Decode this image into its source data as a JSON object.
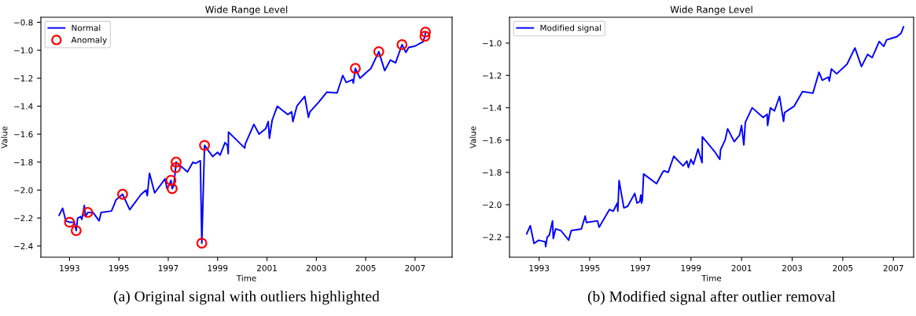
{
  "chart_data": [
    {
      "type": "line",
      "title": "Wide Range Level",
      "xlabel": "Time",
      "ylabel": "Value",
      "legend": "top left",
      "annotations": [
        "(a) Original signal with outliers highlighted"
      ],
      "xlim": [
        1991.84,
        2008.5
      ],
      "ylim": [
        -2.48,
        -0.764
      ],
      "xticks": [
        1993,
        1995,
        1997,
        1999,
        2001,
        2003,
        2005,
        2007
      ],
      "yticks": [
        {
          "value": -2.4,
          "label": "−2.4"
        },
        {
          "value": -2.2,
          "label": "−2.2"
        },
        {
          "value": -2.0,
          "label": "−2.0"
        },
        {
          "value": -1.8,
          "label": "−1.8"
        },
        {
          "value": -1.6,
          "label": "−1.6"
        },
        {
          "value": -1.4,
          "label": "−1.4"
        },
        {
          "value": -1.2,
          "label": "−1.2"
        },
        {
          "value": -1.0,
          "label": "−1.0"
        },
        {
          "value": -0.8,
          "label": "−0.8"
        }
      ],
      "series": [
        {
          "name": "Normal",
          "color": "#0000ff",
          "x": [
            1992.58,
            1992.72,
            1992.85,
            1993.0,
            1993.2,
            1993.27,
            1993.33,
            1993.45,
            1993.5,
            1993.6,
            1993.65,
            1993.74,
            1993.95,
            1994.2,
            1994.28,
            1994.7,
            1994.82,
            1994.88,
            1995.15,
            1995.44,
            1995.9,
            1996.1,
            1996.15,
            1996.24,
            1996.45,
            1996.87,
            1996.95,
            1997.05,
            1997.11,
            1997.16,
            1997.22,
            1997.3,
            1997.32,
            1997.78,
            1998.0,
            1998.1,
            1998.3,
            1998.36,
            1998.47,
            1998.8,
            1999.0,
            1999.1,
            1999.3,
            1999.4,
            1999.43,
            1999.44,
            2000.1,
            2000.12,
            2000.47,
            2000.68,
            2000.95,
            2001.05,
            2001.1,
            2001.21,
            2001.42,
            2001.84,
            2002.0,
            2002.05,
            2002.21,
            2002.53,
            2002.68,
            2002.74,
            2003.1,
            2003.42,
            2003.84,
            2004.07,
            2004.21,
            2004.47,
            2004.5,
            2004.58,
            2004.77,
            2004.89,
            2005.21,
            2005.53,
            2005.77,
            2006.0,
            2006.21,
            2006.47,
            2006.63,
            2006.74,
            2007.0,
            2007.21,
            2007.32,
            2007.4,
            2007.42
          ],
          "values": [
            -2.18,
            -2.13,
            -2.22,
            -2.23,
            -2.23,
            -2.29,
            -2.2,
            -2.19,
            -2.21,
            -2.11,
            -2.19,
            -2.16,
            -2.16,
            -2.22,
            -2.16,
            -2.15,
            -2.1,
            -2.07,
            -2.03,
            -2.14,
            -2.03,
            -2.0,
            -2.04,
            -1.88,
            -2.02,
            -1.92,
            -1.99,
            -1.96,
            -1.93,
            -1.99,
            -1.97,
            -1.84,
            -1.8,
            -1.87,
            -1.8,
            -1.81,
            -1.79,
            -2.38,
            -1.68,
            -1.76,
            -1.73,
            -1.75,
            -1.66,
            -1.68,
            -1.74,
            -1.585,
            -1.7,
            -1.67,
            -1.53,
            -1.6,
            -1.56,
            -1.51,
            -1.63,
            -1.5,
            -1.4,
            -1.46,
            -1.44,
            -1.51,
            -1.4,
            -1.33,
            -1.48,
            -1.44,
            -1.37,
            -1.3,
            -1.305,
            -1.18,
            -1.23,
            -1.21,
            -1.235,
            -1.13,
            -1.2,
            -1.18,
            -1.13,
            -1.01,
            -1.146,
            -1.07,
            -1.09,
            -0.96,
            -1.015,
            -0.98,
            -0.97,
            -0.95,
            -0.94,
            -0.9,
            -0.87
          ]
        },
        {
          "name": "Anomaly",
          "type": "scatter",
          "marker": "circle",
          "color": "#ff0000",
          "x": [
            1993.0,
            1993.27,
            1993.74,
            1995.15,
            1997.11,
            1997.16,
            1997.3,
            1997.32,
            1998.36,
            1998.47,
            2004.58,
            2005.53,
            2006.47,
            2007.4,
            2007.42
          ],
          "values": [
            -2.23,
            -2.29,
            -2.16,
            -2.03,
            -1.93,
            -1.99,
            -1.84,
            -1.8,
            -2.38,
            -1.68,
            -1.13,
            -1.01,
            -0.96,
            -0.9,
            -0.87
          ]
        }
      ]
    },
    {
      "type": "line",
      "title": "Wide Range Level",
      "xlabel": "Time",
      "ylabel": "Value",
      "legend": "top left",
      "annotations": [
        "(b) Modified signal after outlier removal"
      ],
      "xlim": [
        1991.83,
        2007.8
      ],
      "ylim": [
        -2.325,
        -0.84
      ],
      "xticks": [
        1993,
        1995,
        1997,
        1999,
        2001,
        2003,
        2005,
        2007
      ],
      "yticks": [
        {
          "value": -2.2,
          "label": "−2.2"
        },
        {
          "value": -2.0,
          "label": "−2.0"
        },
        {
          "value": -1.8,
          "label": "−1.8"
        },
        {
          "value": -1.6,
          "label": "−1.6"
        },
        {
          "value": -1.4,
          "label": "−1.4"
        },
        {
          "value": -1.2,
          "label": "−1.2"
        },
        {
          "value": -1.0,
          "label": "−1.0"
        }
      ],
      "series": [
        {
          "name": "Modified signal",
          "color": "#0000ff",
          "x": [
            1992.51,
            1992.65,
            1992.8,
            1992.98,
            1993.24,
            1993.26,
            1993.32,
            1993.4,
            1993.53,
            1993.56,
            1993.65,
            1993.86,
            1994.17,
            1994.27,
            1994.67,
            1994.82,
            1994.87,
            1995.31,
            1995.37,
            1995.78,
            1995.93,
            1996.09,
            1996.11,
            1996.16,
            1996.35,
            1996.5,
            1996.78,
            1996.87,
            1996.98,
            1997.02,
            1997.05,
            1997.08,
            1997.13,
            1997.64,
            1997.88,
            1997.93,
            1998.1,
            1998.32,
            1998.69,
            1998.84,
            1998.9,
            1999.0,
            1999.1,
            1999.28,
            1999.44,
            1999.45,
            1999.93,
            2000.14,
            2000.17,
            2000.35,
            2000.45,
            2000.71,
            2000.92,
            2001.0,
            2001.09,
            2001.15,
            2001.42,
            2001.85,
            2002.01,
            2002.03,
            2002.14,
            2002.3,
            2002.5,
            2002.66,
            2002.7,
            2003.08,
            2003.41,
            2003.82,
            2004.06,
            2004.19,
            2004.43,
            2004.47,
            2004.55,
            2004.76,
            2005.17,
            2005.48,
            2005.74,
            2005.98,
            2006.16,
            2006.44,
            2006.62,
            2006.73,
            2006.94,
            2007.14,
            2007.3,
            2007.4
          ],
          "values": [
            -2.18,
            -2.13,
            -2.24,
            -2.22,
            -2.23,
            -2.26,
            -2.2,
            -2.19,
            -2.1,
            -2.21,
            -2.15,
            -2.16,
            -2.22,
            -2.16,
            -2.15,
            -2.07,
            -2.11,
            -2.1,
            -2.14,
            -2.03,
            -2.04,
            -1.99,
            -2.04,
            -1.85,
            -2.02,
            -2.01,
            -1.93,
            -1.99,
            -1.98,
            -1.94,
            -1.99,
            -1.97,
            -1.81,
            -1.87,
            -1.8,
            -1.79,
            -1.8,
            -1.7,
            -1.76,
            -1.73,
            -1.77,
            -1.72,
            -1.75,
            -1.655,
            -1.74,
            -1.58,
            -1.67,
            -1.72,
            -1.66,
            -1.6,
            -1.53,
            -1.61,
            -1.57,
            -1.51,
            -1.63,
            -1.49,
            -1.4,
            -1.46,
            -1.44,
            -1.51,
            -1.4,
            -1.42,
            -1.33,
            -1.485,
            -1.43,
            -1.39,
            -1.3,
            -1.31,
            -1.18,
            -1.23,
            -1.21,
            -1.235,
            -1.16,
            -1.19,
            -1.13,
            -1.03,
            -1.145,
            -1.07,
            -1.09,
            -0.99,
            -1.02,
            -0.98,
            -0.97,
            -0.96,
            -0.94,
            -0.9
          ]
        }
      ]
    }
  ]
}
